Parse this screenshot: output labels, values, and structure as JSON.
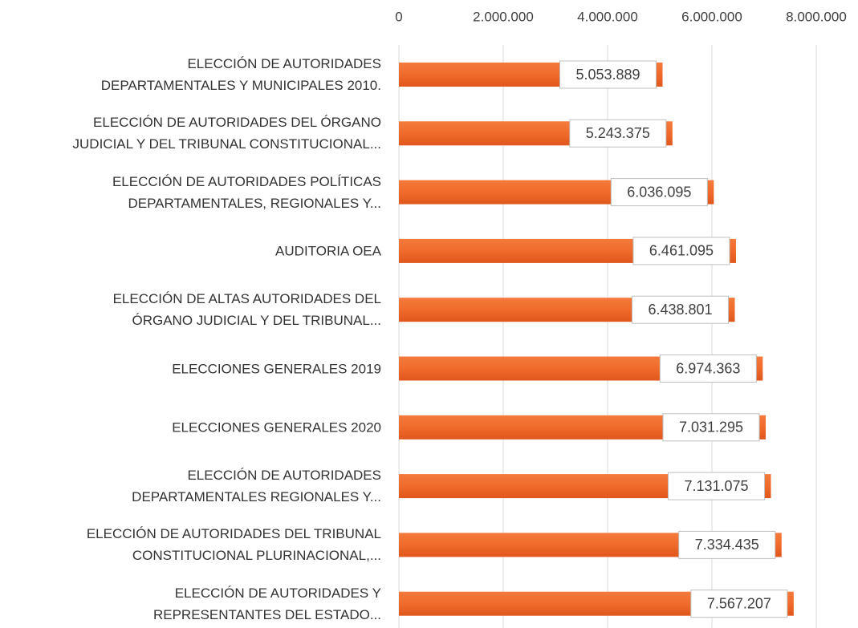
{
  "chart_data": {
    "type": "barh",
    "categories": [
      "ELECCIÓN DE AUTORIDADES\nDEPARTAMENTALES Y MUNICIPALES 2010.",
      "ELECCIÓN DE AUTORIDADES DEL ÓRGANO\nJUDICIAL Y DEL TRIBUNAL CONSTITUCIONAL...",
      "ELECCIÓN DE AUTORIDADES POLÍTICAS\nDEPARTAMENTALES, REGIONALES Y...",
      "AUDITORIA OEA",
      "ELECCIÓN DE ALTAS AUTORIDADES DEL\nÓRGANO JUDICIAL Y DEL TRIBUNAL...",
      "ELECCIONES GENERALES 2019",
      "ELECCIONES GENERALES 2020",
      "ELECCIÓN DE AUTORIDADES\nDEPARTAMENTALES REGIONALES Y...",
      "ELECCIÓN DE AUTORIDADES DEL TRIBUNAL\nCONSTITUCIONAL PLURINACIONAL,...",
      "ELECCIÓN DE AUTORIDADES Y\nREPRESENTANTES DEL ESTADO..."
    ],
    "values": [
      5053889,
      5243375,
      6036095,
      6461095,
      6438801,
      6974363,
      7031295,
      7131075,
      7334435,
      7567207
    ],
    "value_labels": [
      "5.053.889",
      "5.243.375",
      "6.036.095",
      "6.461.095",
      "6.438.801",
      "6.974.363",
      "7.031.295",
      "7.131.075",
      "7.334.435",
      "7.567.207"
    ],
    "color": "#f06b2b",
    "xlim": [
      0,
      8000000
    ],
    "xticks": [
      0,
      {
        "value": 2000000,
        "label": "2.000.000"
      },
      {
        "value": 4000000,
        "label": "4.000.000"
      },
      {
        "value": 6000000,
        "label": "6.000.000"
      },
      {
        "value": 8000000,
        "label": "8.000.000"
      }
    ],
    "grid": true
  }
}
